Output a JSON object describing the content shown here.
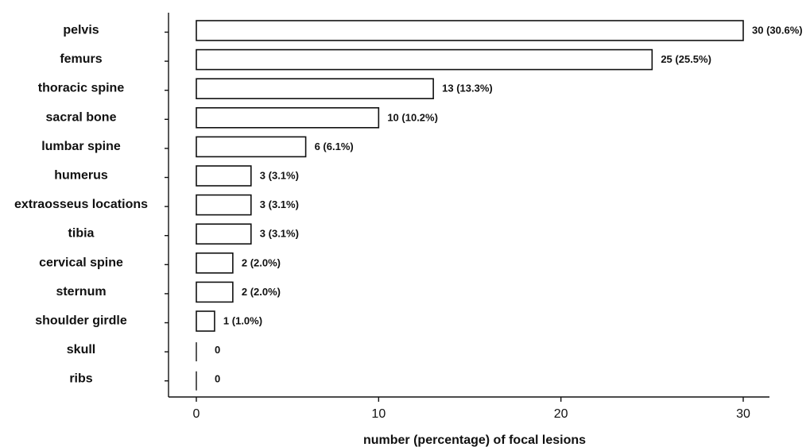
{
  "chart_data": {
    "type": "bar",
    "orientation": "horizontal",
    "categories": [
      "pelvis",
      "femurs",
      "thoracic spine",
      "sacral bone",
      "lumbar spine",
      "humerus",
      "extraosseus locations",
      "tibia",
      "cervical spine",
      "sternum",
      "shoulder girdle",
      "skull",
      "ribs"
    ],
    "values": [
      30,
      25,
      13,
      10,
      6,
      3,
      3,
      3,
      2,
      2,
      1,
      0,
      0
    ],
    "data_labels": [
      "30 (30.6%)",
      "25 (25.5%)",
      "13 (13.3%)",
      "10 (10.2%)",
      "6 (6.1%)",
      "3 (3.1%)",
      "3 (3.1%)",
      "3 (3.1%)",
      "2 (2.0%)",
      "2 (2.0%)",
      "1 (1.0%)",
      "0",
      "0"
    ],
    "xlabel": "number (percentage) of focal lesions",
    "ylabel": "",
    "title": "",
    "xlim": [
      -1.5,
      31.5
    ],
    "xticks": [
      0,
      10,
      20,
      30
    ],
    "grid": false,
    "colors": {
      "bar_fill": "#ffffff",
      "bar_stroke": "#111111"
    }
  }
}
